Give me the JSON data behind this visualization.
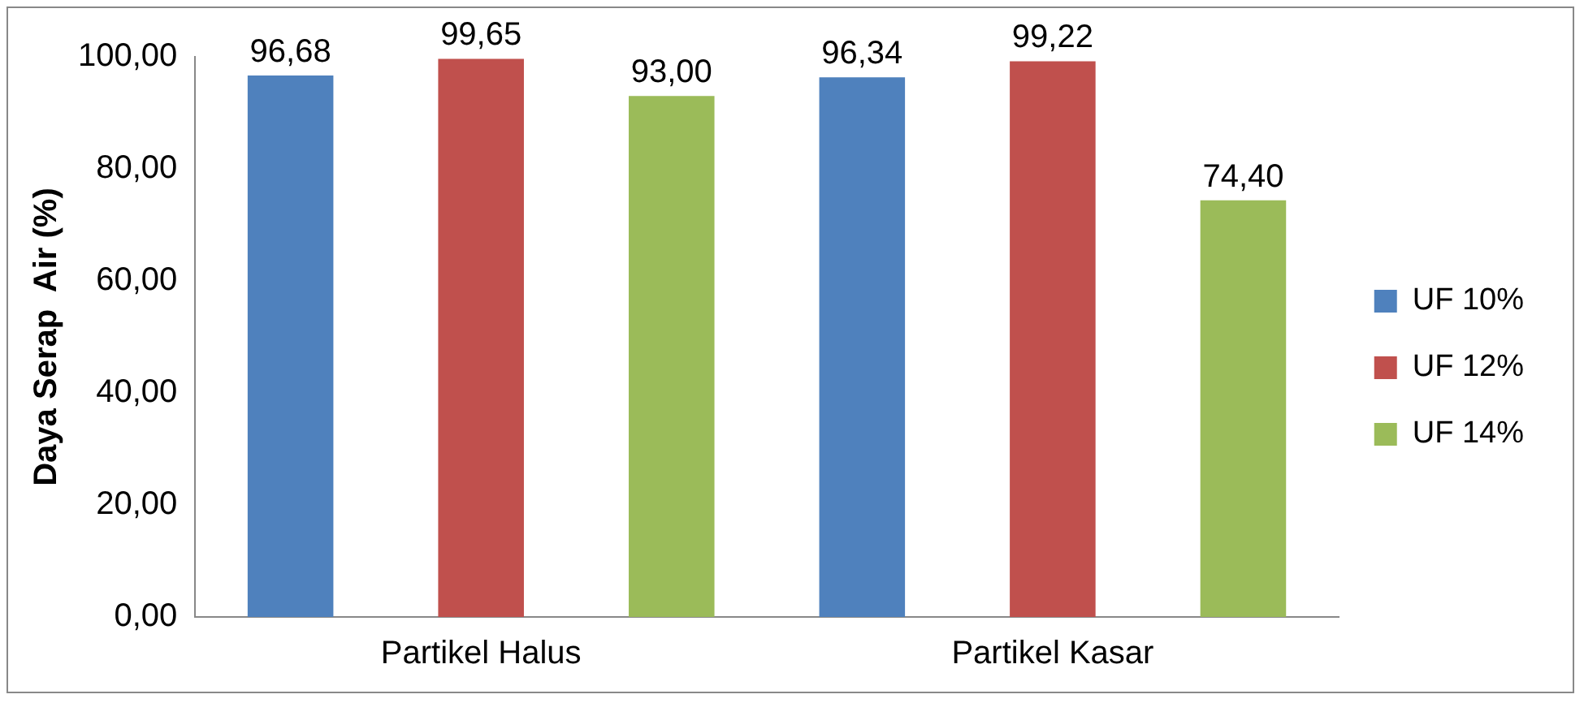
{
  "chart_data": {
    "type": "bar",
    "ylabel": "Daya Serap  Air (%)",
    "categories": [
      "Partikel Halus",
      "Partikel Kasar"
    ],
    "series": [
      {
        "name": "UF 10%",
        "color": "#4f81bd",
        "values": [
          96.68,
          96.34
        ],
        "value_labels": [
          "96,68",
          "96,34"
        ]
      },
      {
        "name": "UF 12%",
        "color": "#c0504d",
        "values": [
          99.65,
          99.22
        ],
        "value_labels": [
          "99,65",
          "99,22"
        ]
      },
      {
        "name": "UF 14%",
        "color": "#9bbb59",
        "values": [
          93.0,
          74.4
        ],
        "value_labels": [
          "93,00",
          "74,40"
        ]
      }
    ],
    "ylim": [
      0,
      100
    ],
    "yticks": [
      {
        "value": 0,
        "label": "0,00"
      },
      {
        "value": 20,
        "label": "20,00"
      },
      {
        "value": 40,
        "label": "40,00"
      },
      {
        "value": 60,
        "label": "60,00"
      },
      {
        "value": 80,
        "label": "80,00"
      },
      {
        "value": 100,
        "label": "100,00"
      }
    ],
    "grid": false,
    "legend": "right"
  }
}
